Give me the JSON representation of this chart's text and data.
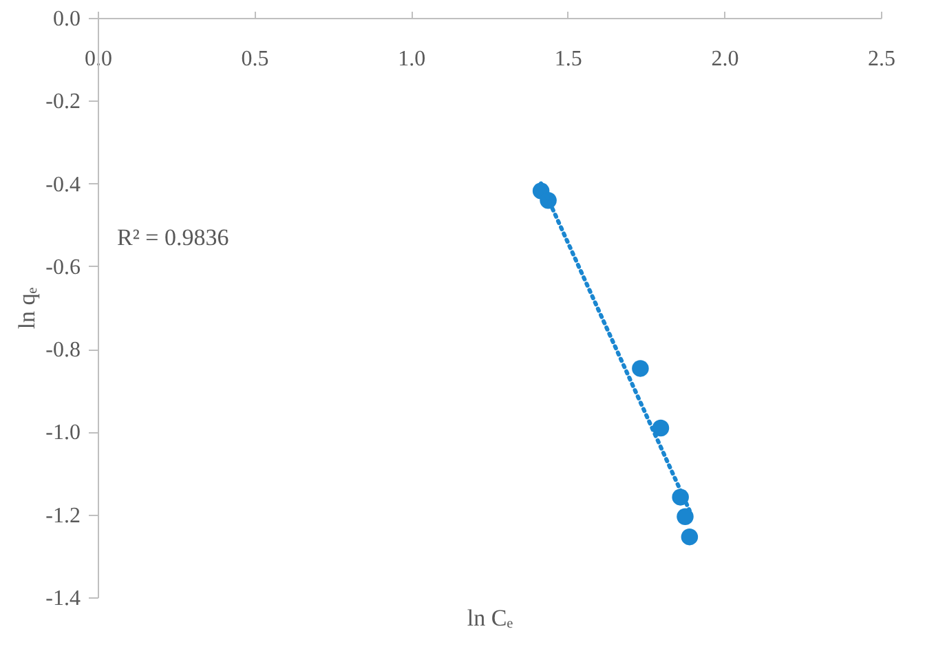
{
  "chart_data": {
    "type": "scatter",
    "xlabel": "ln Cₑ",
    "ylabel": "ln qₑ",
    "xlim": [
      0,
      2.5
    ],
    "ylim": [
      -1.4,
      0
    ],
    "xticks": [
      {
        "value": 0,
        "label": "0.0"
      },
      0.5,
      {
        "value": 1,
        "label": "1.0"
      },
      1.5,
      {
        "value": 2,
        "label": "2.0"
      },
      2.5
    ],
    "yticks": [
      {
        "value": 0,
        "label": "0.0"
      },
      -0.2,
      -0.4,
      -0.6,
      -0.8,
      {
        "value": -1,
        "label": "-1.0"
      },
      -1.2,
      -1.4
    ],
    "grid": false,
    "annotations": [
      "R² = 0.9836"
    ],
    "series": [
      {
        "color": "#1a86d0",
        "marker": "circle",
        "x": [
          1.415,
          1.438,
          1.732,
          1.797,
          1.86,
          1.875,
          1.889
        ],
        "values": [
          -0.418,
          -0.441,
          -0.847,
          -0.991,
          -1.158,
          -1.205,
          -1.254
        ]
      },
      {
        "type": "line",
        "color": "#1a86d0",
        "line_style": "dotted",
        "marker": "none",
        "x": [
          1.415,
          1.889
        ],
        "values": [
          -0.4,
          -1.19
        ]
      }
    ]
  }
}
